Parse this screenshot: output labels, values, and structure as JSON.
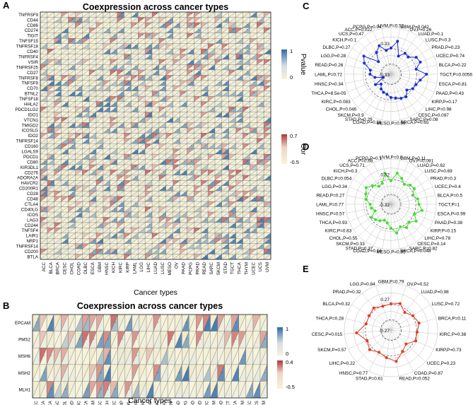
{
  "chart_data": [
    {
      "panel": "A",
      "type": "heatmap",
      "title": "Coexpression across cancer types",
      "xlabel": "Cancer types",
      "cancer_types": [
        "ACC",
        "BLCA",
        "BRCA",
        "CESC",
        "CHOL",
        "COAD",
        "DLBC",
        "ESCA",
        "GBM",
        "HNSC",
        "KICH",
        "KIRC",
        "KIRP",
        "LAML",
        "LGG",
        "LIHC",
        "LUAD",
        "LUSC",
        "MESO",
        "OV",
        "PAAD",
        "PCPG",
        "PRAD",
        "READ",
        "SARC",
        "SKCM",
        "STAD",
        "TGCT",
        "THCA",
        "THYM",
        "UCEC",
        "UCS",
        "UVM"
      ],
      "genes": [
        "TNFRSF9",
        "CD44",
        "CD86",
        "CD274",
        "TIGIT",
        "TNFSF15",
        "TNFRSF18",
        "CD40",
        "TNFRSF4",
        "VSIR",
        "TNFRSF25",
        "CD27",
        "TNFRSF8",
        "TNFSF9",
        "CD70",
        "BTNL2",
        "TNFSF18",
        "HHLA2",
        "PDCD1LG2",
        "IDO1",
        "VTCN1",
        "TMIGD2",
        "ICOSLG",
        "IDO2",
        "TNFRSF14",
        "CD160",
        "LGALS9",
        "PDCD1",
        "CD80",
        "KIR3DL1",
        "CD276",
        "ADORA2A",
        "HAVCR2",
        "CD200R1",
        "CD28",
        "CD48",
        "CTLA4",
        "CD40LG",
        "ICOS",
        "LAG3",
        "CD244",
        "TNFSF4",
        "LAIR1",
        "NRP1",
        "TNFRSF14",
        "CD200",
        "BTLA"
      ],
      "legend": [
        {
          "title": "Pvalue",
          "ticks": [
            "1",
            "0"
          ]
        },
        {
          "title": "Cor",
          "ticks": [
            "0.7",
            "-0.5"
          ]
        }
      ],
      "colors": {
        "high": "#2e6aa8",
        "mid": "#f5f2da",
        "low": "#f6f2d9",
        "pos": "#b5333a"
      }
    },
    {
      "panel": "B",
      "type": "heatmap",
      "title": "Coexpression across cancer types",
      "xlabel": "Cancer types",
      "cancer_types": [
        "ACC",
        "BLCA",
        "BRCA",
        "CESC",
        "CHOL",
        "COAD",
        "DLBC",
        "ESCA",
        "GBM",
        "HNSC",
        "KICH",
        "KIRC",
        "KIRP",
        "LAML",
        "LGG",
        "LIHC",
        "LUAD",
        "LUSC",
        "MESO",
        "OV",
        "PAAD",
        "PCPG",
        "PRAD",
        "READ",
        "SARC",
        "SKCM",
        "STAD",
        "TGCT",
        "THCA",
        "THYM",
        "UCEC",
        "UCS",
        "UVM"
      ],
      "genes": [
        "EPCAM",
        "PMS2",
        "MSH6",
        "MSH2",
        "MLH1"
      ],
      "legend": [
        {
          "title": "",
          "ticks": [
            "1",
            "0"
          ]
        },
        {
          "title": "",
          "ticks": [
            "0.4",
            "-0.5"
          ]
        }
      ]
    },
    {
      "panel": "C",
      "type": "radar",
      "color": "#1a2fd0",
      "rings": [
        "0.33",
        "-0.33"
      ],
      "labels": [
        "UVM,P=0.52",
        "GBM,P=0.042",
        "OV,P=0.26",
        "LUAD,P=0.1",
        "LUSC,P=0.3",
        "PRAD,P=0.23",
        "UCEC,P=0.74",
        "BLCA,P=0.22",
        "TGCT,P=0.0056",
        "ESCA,P=0.81",
        "PAAD,P=0.43",
        "KIRP,P=0.17",
        "LIHC,P=0.98",
        "CESC,P=0.097",
        "SARC,P=0.08",
        "BRCA,P=0.65",
        "MESO,P=0.99",
        "COAD,P=0.31",
        "STAD,P=0.29",
        "SKCM,P=0.9",
        "CHOL,P=0.046",
        "KIRC,P=0.083",
        "THCA,P=8.5e-05",
        "HNSC,P=0.34",
        "LAML,P=0.72",
        "READ,P=0.26",
        "LGG,P=0.28",
        "DLBC,P=0.27",
        "KICH,P=0.1",
        "UCS,P=0.47",
        "ACC,P=0.022",
        "PCPG,P=0.94"
      ],
      "values": [
        0.06,
        0.22,
        -0.08,
        0.04,
        0.02,
        0.15,
        0.18,
        0.05,
        0.26,
        0.14,
        0.08,
        0.06,
        -0.02,
        0.08,
        0.06,
        0.02,
        0.0,
        -0.06,
        -0.08,
        -0.12,
        -0.2,
        -0.1,
        -0.32,
        -0.15,
        -0.05,
        -0.05,
        0.12,
        0.2,
        -0.12,
        0.06,
        0.16,
        0.02
      ]
    },
    {
      "panel": "D",
      "type": "radar",
      "color": "#3fdf2a",
      "rings": [
        "0.32",
        "-0.32"
      ],
      "labels": [
        "UVM,P=0.6",
        "GBM,P=0.11",
        "OV,P=0.091",
        "LUAD,P=0.62",
        "LUSC,P=0.69",
        "PRAD,P=0.3",
        "UCEC,P=0.4",
        "BLCA,P=0.5",
        "TGCT,P=1",
        "ESCA,P=0.99",
        "PAAD,P=0.38",
        "KIRP,P=0.15",
        "LIHC,P=0.78",
        "CESC,P=0.14",
        "SARC,P=0.82",
        "BRCA,P=0.048",
        "MESO,P=0.85",
        "COAD,P=0.56",
        "STAD,P=0.37",
        "SKCM,P=0.33",
        "CHOL,P=0.55",
        "KIRC,P=0.83",
        "THCA,P=0.93",
        "HNSC,P=0.57",
        "LAML,P=0.77",
        "READ,P=0.27",
        "LGG,P=0.34",
        "DLBC,P=0.054",
        "KICH,P=0.3",
        "UCS,P=0.71",
        "ACC,P=0.68",
        "PCPG,P=0.1"
      ],
      "values": [
        0.02,
        0.2,
        0.12,
        0.03,
        0.1,
        0.12,
        0.02,
        0.1,
        0.12,
        0.2,
        0.06,
        0.17,
        0.06,
        0.12,
        0.04,
        0.15,
        0.03,
        -0.08,
        -0.12,
        -0.06,
        -0.02,
        0.02,
        -0.12,
        -0.06,
        -0.04,
        0.06,
        0.1,
        0.16,
        0.08,
        -0.02,
        0.0,
        0.2
      ]
    },
    {
      "panel": "E",
      "type": "radar",
      "color": "#e03a1e",
      "rings": [
        "0.27",
        "-0.27"
      ],
      "labels": [
        "GBM,P=0.79",
        "OV,P=0.52",
        "LUAD,P=0.98",
        "LUSC,P=0.72",
        "BRCA,P=0.11",
        "KIRC,P=0.38",
        "KIRP,P=0.73",
        "UCEC,P=0.23",
        "COAD,P=0.87",
        "READ,P=0.052",
        "STAD,P=0.61",
        "HNSC,P=0.77",
        "LIHC,P=0.22",
        "SKCM,P=0.57",
        "CESC,P=0.015",
        "THCA,P=0.28",
        "BLCA,P=0.32",
        "PRAD,P=0.32",
        "LGG,P=0.84"
      ],
      "values": [
        0.06,
        0.1,
        -0.02,
        0.06,
        0.12,
        0.06,
        0.08,
        -0.06,
        0.02,
        0.18,
        0.1,
        0.04,
        0.12,
        0.06,
        0.24,
        0.05,
        0.06,
        0.1,
        0.04
      ]
    }
  ]
}
